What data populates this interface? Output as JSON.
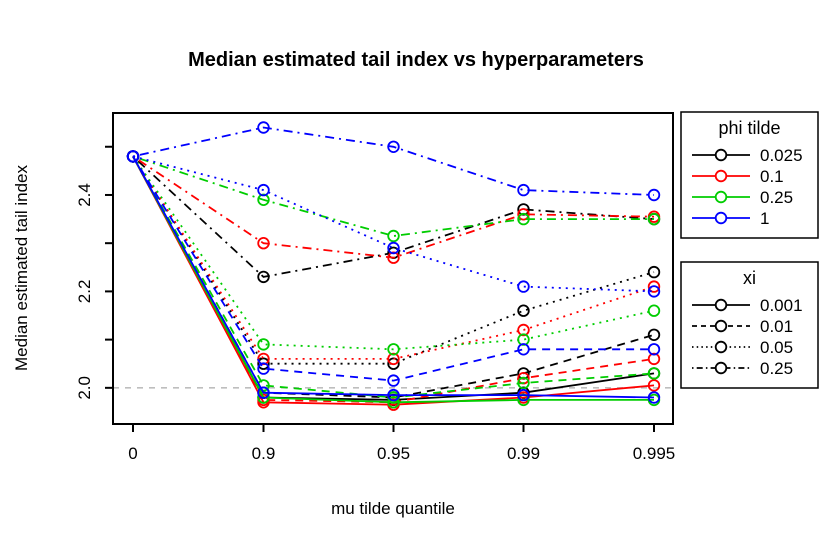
{
  "chart_data": {
    "type": "line",
    "title": "Median estimated tail index vs hyperparameters",
    "xlabel": "mu tilde quantile",
    "ylabel": "Median estimated tail index",
    "categories": [
      "0",
      "0.9",
      "0.95",
      "0.99",
      "0.995"
    ],
    "y_axis": {
      "labeled_ticks": [
        "2.0",
        "2.2",
        "2.4"
      ],
      "labeled_tick_values": [
        2.0,
        2.2,
        2.4
      ],
      "minor_tick_values": [
        2.1,
        2.3,
        2.5
      ],
      "range": [
        1.925,
        2.57
      ]
    },
    "grid": false,
    "marker": "open-circle",
    "reference_line": {
      "value": 2.0,
      "color": "#BEBEBE",
      "style": "dashed"
    },
    "palette": {
      "black": "#000000",
      "red": "#FF0000",
      "green": "#00CD00",
      "blue": "#0000FF"
    },
    "legends": [
      {
        "title": "phi tilde",
        "entries": [
          {
            "label": "0.025",
            "color": "#000000",
            "dash": "solid"
          },
          {
            "label": "0.1",
            "color": "#FF0000",
            "dash": "solid"
          },
          {
            "label": "0.25",
            "color": "#00CD00",
            "dash": "solid"
          },
          {
            "label": "1",
            "color": "#0000FF",
            "dash": "solid"
          }
        ]
      },
      {
        "title": "xi",
        "entries": [
          {
            "label": "0.001",
            "color": "#000000",
            "dash": "solid"
          },
          {
            "label": "0.01",
            "color": "#000000",
            "dash": "dashed"
          },
          {
            "label": "0.05",
            "color": "#000000",
            "dash": "dotted"
          },
          {
            "label": "0.25",
            "color": "#000000",
            "dash": "dashdot"
          }
        ]
      }
    ],
    "series": [
      {
        "name": "phi 0.025, xi 0.001",
        "color": "#000000",
        "dash": "solid",
        "values": [
          2.48,
          1.98,
          1.975,
          1.99,
          2.03
        ]
      },
      {
        "name": "phi 0.025, xi 0.01",
        "color": "#000000",
        "dash": "dashed",
        "values": [
          2.48,
          1.99,
          1.98,
          2.03,
          2.11
        ]
      },
      {
        "name": "phi 0.025, xi 0.05",
        "color": "#000000",
        "dash": "dotted",
        "values": [
          2.48,
          2.05,
          2.05,
          2.16,
          2.24
        ]
      },
      {
        "name": "phi 0.025, xi 0.25",
        "color": "#000000",
        "dash": "dashdot",
        "values": [
          2.48,
          2.23,
          2.28,
          2.37,
          2.35
        ]
      },
      {
        "name": "phi 0.1, xi 0.001",
        "color": "#FF0000",
        "dash": "solid",
        "values": [
          2.48,
          1.97,
          1.965,
          1.98,
          2.005
        ]
      },
      {
        "name": "phi 0.1, xi 0.01",
        "color": "#FF0000",
        "dash": "dashed",
        "values": [
          2.48,
          1.975,
          1.97,
          2.02,
          2.06
        ]
      },
      {
        "name": "phi 0.1, xi 0.05",
        "color": "#FF0000",
        "dash": "dotted",
        "values": [
          2.48,
          2.06,
          2.06,
          2.12,
          2.21
        ]
      },
      {
        "name": "phi 0.1, xi 0.25",
        "color": "#FF0000",
        "dash": "dashdot",
        "values": [
          2.48,
          2.3,
          2.27,
          2.36,
          2.355
        ]
      },
      {
        "name": "phi 0.25, xi 0.001",
        "color": "#00CD00",
        "dash": "solid",
        "values": [
          2.48,
          1.98,
          1.97,
          1.975,
          1.975
        ]
      },
      {
        "name": "phi 0.25, xi 0.01",
        "color": "#00CD00",
        "dash": "dashed",
        "values": [
          2.48,
          2.005,
          1.98,
          2.01,
          2.03
        ]
      },
      {
        "name": "phi 0.25, xi 0.05",
        "color": "#00CD00",
        "dash": "dotted",
        "values": [
          2.48,
          2.09,
          2.08,
          2.1,
          2.16
        ]
      },
      {
        "name": "phi 0.25, xi 0.25",
        "color": "#00CD00",
        "dash": "dashdot",
        "values": [
          2.48,
          2.39,
          2.315,
          2.35,
          2.35
        ]
      },
      {
        "name": "phi 1, xi 0.001",
        "color": "#0000FF",
        "dash": "solid",
        "values": [
          2.48,
          1.99,
          1.985,
          1.985,
          1.98
        ]
      },
      {
        "name": "phi 1, xi 0.01",
        "color": "#0000FF",
        "dash": "dashed",
        "values": [
          2.48,
          2.04,
          2.015,
          2.08,
          2.08
        ]
      },
      {
        "name": "phi 1, xi 0.05",
        "color": "#0000FF",
        "dash": "dotted",
        "values": [
          2.48,
          2.41,
          2.29,
          2.21,
          2.2
        ]
      },
      {
        "name": "phi 1, xi 0.25",
        "color": "#0000FF",
        "dash": "dashdot",
        "values": [
          2.48,
          2.54,
          2.5,
          2.41,
          2.4
        ]
      }
    ]
  }
}
